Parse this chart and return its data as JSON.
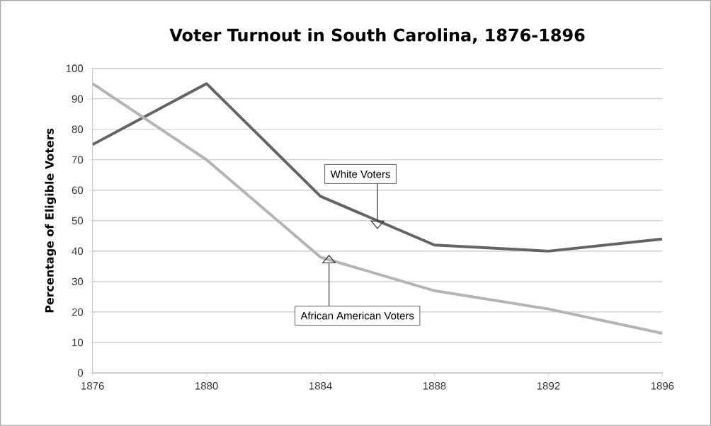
{
  "chart_data": {
    "type": "line",
    "title": "Voter Turnout in South Carolina, 1876-1896",
    "ylabel": "Percentage of Eligible  Voters",
    "x": [
      1876,
      1880,
      1884,
      1888,
      1892,
      1896
    ],
    "series": [
      {
        "color": "#646464",
        "values": [
          75,
          95,
          58,
          42,
          40,
          44
        ]
      },
      {
        "color": "#b4b4b4",
        "values": [
          95,
          70,
          38,
          27,
          21,
          13
        ]
      }
    ],
    "annotations": [
      {
        "text": "White Voters",
        "x": 1886,
        "y": 50
      },
      {
        "text": "African American Voters",
        "x": 1884.3,
        "y": 36
      }
    ],
    "xlim": [
      1876,
      1896
    ],
    "xticks": [
      1876,
      1880,
      1884,
      1888,
      1892,
      1896
    ],
    "ylim": [
      0,
      100
    ],
    "yticks": [
      0,
      10,
      20,
      30,
      40,
      50,
      60,
      70,
      80,
      90,
      100
    ],
    "grid": "y",
    "marker": "none",
    "line_style": "solid"
  }
}
